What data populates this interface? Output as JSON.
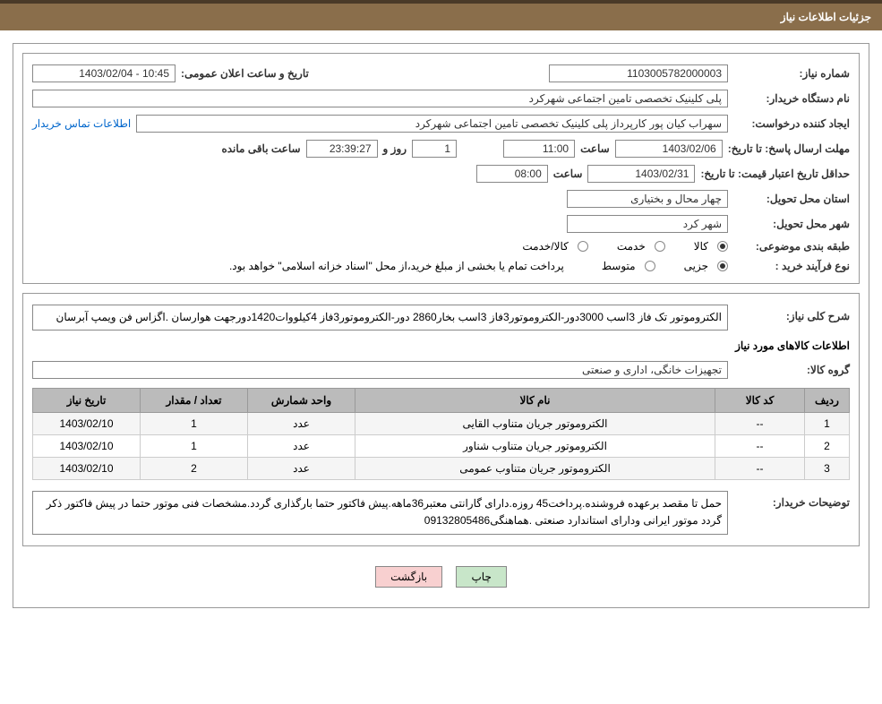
{
  "header": {
    "title": "جزئیات اطلاعات نیاز"
  },
  "fields": {
    "need_number_label": "شماره نیاز:",
    "need_number": "1103005782000003",
    "announce_label": "تاریخ و ساعت اعلان عمومی:",
    "announce_value": "10:45 - 1403/02/04",
    "buyer_org_label": "نام دستگاه خریدار:",
    "buyer_org": "پلی کلینیک تخصصی تامین اجتماعی شهرکرد",
    "requester_label": "ایجاد کننده درخواست:",
    "requester": "سهراب کیان پور کارپرداز پلی کلینیک تخصصی تامین اجتماعی شهرکرد",
    "contact_link": "اطلاعات تماس خریدار",
    "deadline_reply_label": "مهلت ارسال پاسخ:",
    "until_date_label": "تا تاریخ:",
    "deadline_date": "1403/02/06",
    "time_label": "ساعت",
    "deadline_time": "11:00",
    "days_count": "1",
    "days_and_label": "روز و",
    "countdown": "23:39:27",
    "remaining_label": "ساعت باقی مانده",
    "validity_label": "حداقل تاریخ اعتبار قیمت:",
    "validity_date": "1403/02/31",
    "validity_time": "08:00",
    "province_label": "استان محل تحویل:",
    "province": "چهار محال و بختیاری",
    "city_label": "شهر محل تحویل:",
    "city": "شهر کرد",
    "category_label": "طبقه بندی موضوعی:",
    "cat_goods": "کالا",
    "cat_service": "خدمت",
    "cat_goods_service": "کالا/خدمت",
    "purchase_type_label": "نوع فرآیند خرید :",
    "pt_partial": "جزیی",
    "pt_medium": "متوسط",
    "purchase_note": "پرداخت تمام یا بخشی از مبلغ خرید،از محل \"اسناد خزانه اسلامی\" خواهد بود."
  },
  "details": {
    "general_desc_label": "شرح کلی نیاز:",
    "general_desc": "الکتروموتور تک فاز 3اسب 3000دور-الکتروموتور3فاز 3اسب بخار2860 دور-الکتروموتور3فاز 4کیلووات1420دورجهت هوارسان .اگزاس فن ویمپ آبرسان",
    "items_title": "اطلاعات کالاهای مورد نیاز",
    "group_label": "گروه کالا:",
    "group_value": "تجهیزات خانگی، اداری و صنعتی",
    "buyer_notes_label": "توضیحات خریدار:",
    "buyer_notes": "حمل تا مقصد برعهده فروشنده.پرداخت45 روزه.دارای گارانتی معتبر36ماهه.پیش فاکتور حتما بارگذاری گردد.مشخصات فنی موتور حتما در پیش فاکتور ذکر گردد موتور ایرانی ودارای استاندارد صنعتی .هماهنگی09132805486"
  },
  "table": {
    "headers": {
      "row": "ردیف",
      "code": "کد کالا",
      "name": "نام کالا",
      "unit": "واحد شمارش",
      "qty": "تعداد / مقدار",
      "date": "تاریخ نیاز"
    },
    "rows": [
      {
        "idx": "1",
        "code": "--",
        "name": "الکتروموتور جریان متناوب القایی",
        "unit": "عدد",
        "qty": "1",
        "date": "1403/02/10"
      },
      {
        "idx": "2",
        "code": "--",
        "name": "الکتروموتور جریان متناوب شناور",
        "unit": "عدد",
        "qty": "1",
        "date": "1403/02/10"
      },
      {
        "idx": "3",
        "code": "--",
        "name": "الکتروموتور جریان متناوب عمومی",
        "unit": "عدد",
        "qty": "2",
        "date": "1403/02/10"
      }
    ]
  },
  "buttons": {
    "print": "چاپ",
    "back": "بازگشت"
  }
}
